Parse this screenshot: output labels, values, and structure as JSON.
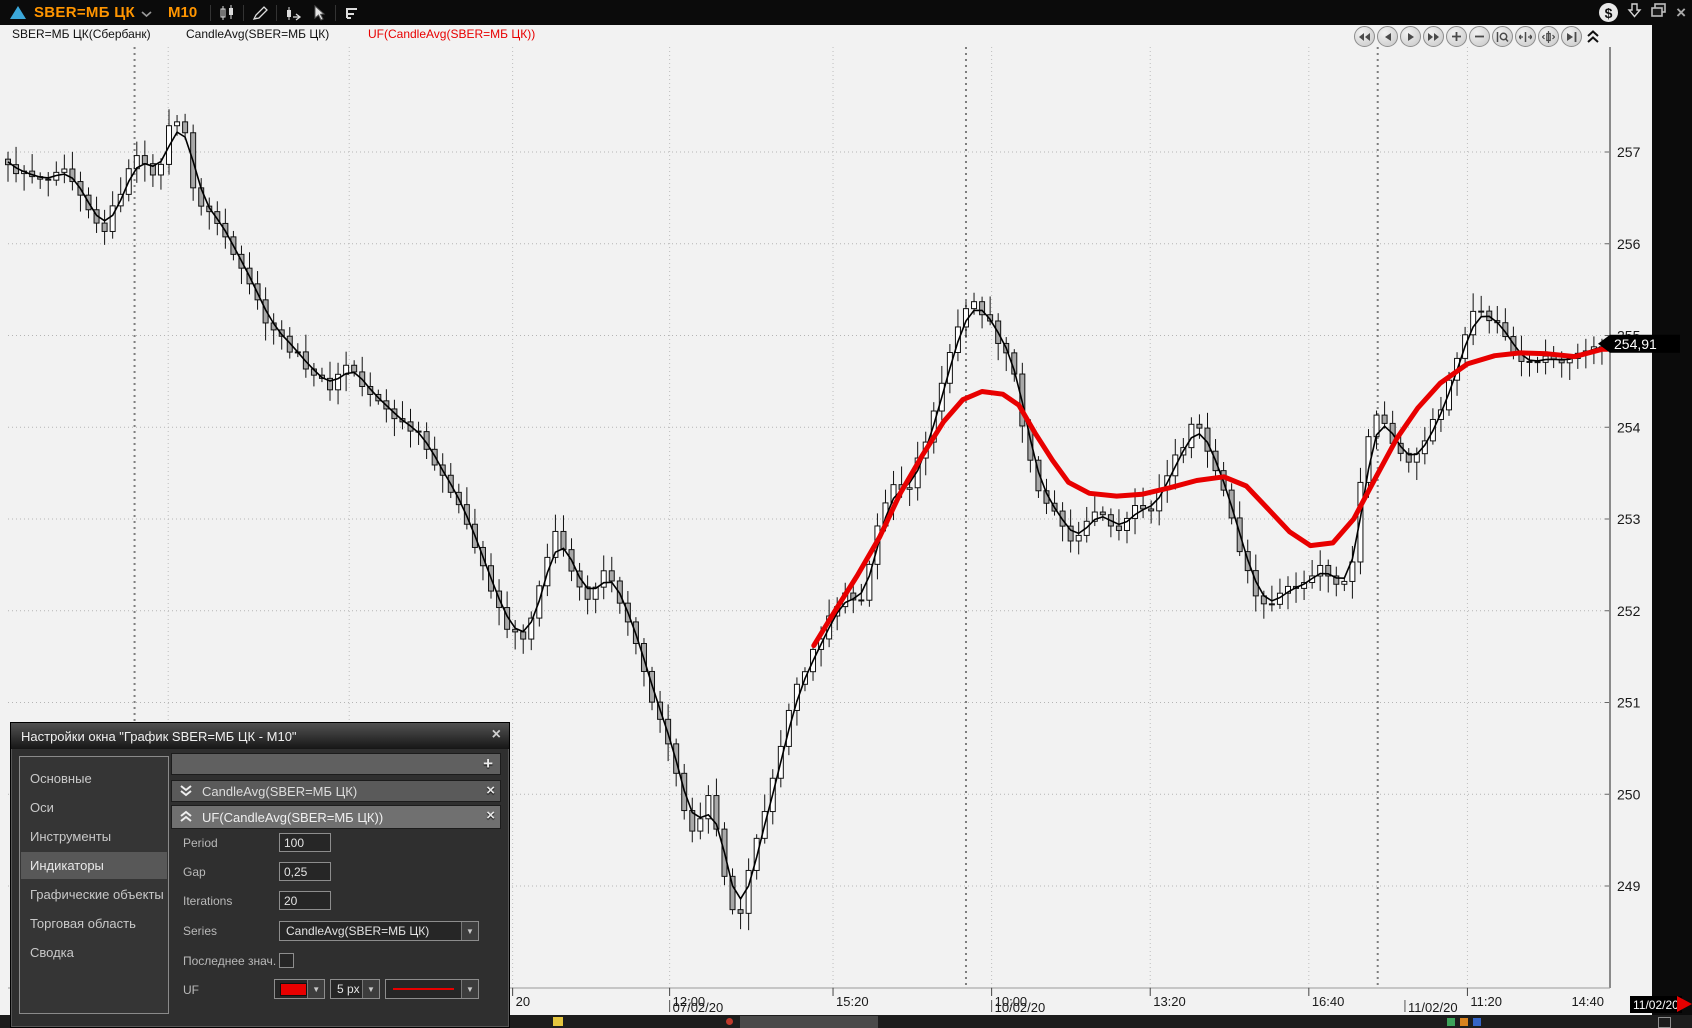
{
  "titlebar": {
    "symbol": "SBER=МБ ЦК",
    "timeframe": "M10",
    "accent_color": "#ff9500",
    "window_buttons": [
      "dollar",
      "download",
      "restore",
      "close"
    ],
    "close_glyph": "×",
    "dollar_glyph": "$",
    "tool_icons": [
      "candles-icon",
      "pencil-icon",
      "candle-edit-icon",
      "cursor-icon",
      "levels-icon"
    ]
  },
  "legend": {
    "items": [
      {
        "label": "SBER=МБ ЦК(Сбербанк)",
        "color": "#111111"
      },
      {
        "label": "CandleAvg(SBER=МБ ЦК)",
        "color": "#111111"
      },
      {
        "label": "UF(CandleAvg(SBER=МБ ЦК))",
        "color": "#e80000"
      }
    ]
  },
  "nav_buttons": [
    "scroll-start",
    "scroll-left",
    "scroll-right",
    "scroll-end",
    "zoom-in",
    "zoom-out",
    "zoom-select",
    "expand-horizontal",
    "fit-candles",
    "go-to-end",
    "collapse-toolbar"
  ],
  "chart_data": {
    "type": "candlestick",
    "instrument": "SBER=МБ ЦК",
    "timeframe": "M10",
    "series": [
      "SBER=МБ ЦК(Сбербанк)",
      "CandleAvg(SBER=МБ ЦК)",
      "UF(CandleAvg(SBER=МБ ЦК))"
    ],
    "price_ticks": [
      257,
      256,
      255,
      254,
      253,
      252,
      251,
      250,
      249
    ],
    "price_range": [
      248.4,
      257.7
    ],
    "bars": 200,
    "last_price": "254,91",
    "up_fill": "#ffffff",
    "down_fill": "#a8a8a8",
    "uf_color": "#e80000",
    "time_ticks": [
      {
        "f": 0.315,
        "label": "20"
      },
      {
        "f": 0.413,
        "label": "12:00"
      },
      {
        "f": 0.515,
        "label": "15:20"
      },
      {
        "f": 0.614,
        "label": "10:00"
      },
      {
        "f": 0.713,
        "label": "13:20"
      },
      {
        "f": 0.812,
        "label": "16:40"
      },
      {
        "f": 0.911,
        "label": "11:20"
      },
      {
        "f": 0.9963,
        "label": "14:40"
      }
    ],
    "date_labels": [
      {
        "f": 0.413,
        "label": "07/02/20"
      },
      {
        "f": 0.614,
        "label": "10/02/20"
      },
      {
        "f": 0.872,
        "label": "11/02/20"
      }
    ],
    "grid_light": [
      0.1,
      0.213,
      0.315,
      0.413,
      0.515,
      0.614,
      0.713,
      0.812,
      0.911
    ],
    "grid_session": [
      0.079,
      0.598,
      0.855
    ],
    "close_path": [
      [
        0.002,
        256.83
      ],
      [
        0.022,
        256.66
      ],
      [
        0.036,
        256.78
      ],
      [
        0.046,
        256.46
      ],
      [
        0.059,
        256.11
      ],
      [
        0.069,
        256.52
      ],
      [
        0.082,
        257.06
      ],
      [
        0.092,
        256.64
      ],
      [
        0.101,
        257.3
      ],
      [
        0.109,
        257.42
      ],
      [
        0.116,
        256.52
      ],
      [
        0.126,
        256.34
      ],
      [
        0.137,
        256.04
      ],
      [
        0.147,
        255.74
      ],
      [
        0.16,
        255.2
      ],
      [
        0.174,
        254.9
      ],
      [
        0.187,
        254.66
      ],
      [
        0.2,
        254.42
      ],
      [
        0.212,
        254.72
      ],
      [
        0.224,
        254.36
      ],
      [
        0.234,
        254.24
      ],
      [
        0.245,
        254.06
      ],
      [
        0.258,
        253.94
      ],
      [
        0.27,
        253.46
      ],
      [
        0.281,
        253.22
      ],
      [
        0.293,
        252.62
      ],
      [
        0.303,
        252.14
      ],
      [
        0.313,
        251.78
      ],
      [
        0.323,
        251.66
      ],
      [
        0.333,
        252.32
      ],
      [
        0.342,
        252.92
      ],
      [
        0.352,
        252.38
      ],
      [
        0.362,
        252.08
      ],
      [
        0.371,
        252.5
      ],
      [
        0.38,
        252.2
      ],
      [
        0.391,
        251.66
      ],
      [
        0.4,
        251.12
      ],
      [
        0.411,
        250.58
      ],
      [
        0.421,
        249.92
      ],
      [
        0.429,
        249.56
      ],
      [
        0.438,
        249.98
      ],
      [
        0.446,
        249.26
      ],
      [
        0.455,
        248.48
      ],
      [
        0.463,
        249.26
      ],
      [
        0.473,
        249.8
      ],
      [
        0.481,
        250.46
      ],
      [
        0.492,
        251.18
      ],
      [
        0.501,
        251.48
      ],
      [
        0.512,
        251.9
      ],
      [
        0.521,
        252.2
      ],
      [
        0.532,
        252.08
      ],
      [
        0.542,
        252.86
      ],
      [
        0.552,
        253.4
      ],
      [
        0.562,
        253.34
      ],
      [
        0.573,
        253.88
      ],
      [
        0.582,
        254.42
      ],
      [
        0.592,
        255.08
      ],
      [
        0.6,
        255.38
      ],
      [
        0.609,
        255.26
      ],
      [
        0.618,
        254.96
      ],
      [
        0.627,
        254.72
      ],
      [
        0.635,
        253.82
      ],
      [
        0.643,
        253.28
      ],
      [
        0.652,
        253.1
      ],
      [
        0.662,
        252.74
      ],
      [
        0.672,
        252.92
      ],
      [
        0.682,
        253.1
      ],
      [
        0.692,
        252.86
      ],
      [
        0.702,
        253.16
      ],
      [
        0.712,
        253.04
      ],
      [
        0.722,
        253.46
      ],
      [
        0.732,
        253.76
      ],
      [
        0.741,
        254.12
      ],
      [
        0.75,
        253.7
      ],
      [
        0.76,
        253.28
      ],
      [
        0.769,
        252.68
      ],
      [
        0.778,
        252.2
      ],
      [
        0.788,
        252.02
      ],
      [
        0.798,
        252.32
      ],
      [
        0.808,
        252.26
      ],
      [
        0.818,
        252.5
      ],
      [
        0.828,
        252.32
      ],
      [
        0.838,
        252.38
      ],
      [
        0.847,
        253.82
      ],
      [
        0.856,
        254.18
      ],
      [
        0.865,
        253.82
      ],
      [
        0.875,
        253.58
      ],
      [
        0.884,
        253.88
      ],
      [
        0.894,
        254.18
      ],
      [
        0.904,
        254.72
      ],
      [
        0.914,
        255.32
      ],
      [
        0.923,
        255.2
      ],
      [
        0.932,
        255.08
      ],
      [
        0.941,
        254.78
      ],
      [
        0.951,
        254.66
      ],
      [
        0.961,
        254.78
      ],
      [
        0.971,
        254.66
      ],
      [
        0.981,
        254.78
      ],
      [
        0.991,
        254.9
      ],
      [
        1.0,
        254.91
      ]
    ],
    "uf_line": [
      [
        0.503,
        251.62
      ],
      [
        0.517,
        252.02
      ],
      [
        0.53,
        252.38
      ],
      [
        0.544,
        252.8
      ],
      [
        0.557,
        253.28
      ],
      [
        0.571,
        253.7
      ],
      [
        0.584,
        254.06
      ],
      [
        0.596,
        254.3
      ],
      [
        0.608,
        254.39
      ],
      [
        0.621,
        254.36
      ],
      [
        0.631,
        254.24
      ],
      [
        0.641,
        253.94
      ],
      [
        0.652,
        253.64
      ],
      [
        0.662,
        253.4
      ],
      [
        0.675,
        253.28
      ],
      [
        0.692,
        253.25
      ],
      [
        0.708,
        253.27
      ],
      [
        0.725,
        253.34
      ],
      [
        0.742,
        253.42
      ],
      [
        0.759,
        253.46
      ],
      [
        0.773,
        253.36
      ],
      [
        0.786,
        253.12
      ],
      [
        0.8,
        252.86
      ],
      [
        0.813,
        252.71
      ],
      [
        0.827,
        252.74
      ],
      [
        0.84,
        253.0
      ],
      [
        0.854,
        253.46
      ],
      [
        0.867,
        253.88
      ],
      [
        0.88,
        254.21
      ],
      [
        0.894,
        254.48
      ],
      [
        0.911,
        254.69
      ],
      [
        0.928,
        254.78
      ],
      [
        0.944,
        254.81
      ],
      [
        0.961,
        254.8
      ],
      [
        0.978,
        254.77
      ],
      [
        0.995,
        254.85
      ]
    ],
    "last_date_badge": "11/02/20"
  },
  "dialog": {
    "title": "Настройки окна \"График SBER=МБ ЦК - M10\"",
    "close_glyph": "×",
    "sidebar": [
      {
        "label": "Основные"
      },
      {
        "label": "Оси"
      },
      {
        "label": "Инструменты"
      },
      {
        "label": "Индикаторы"
      },
      {
        "label": "Графические объекты"
      },
      {
        "label": "Торговая область"
      },
      {
        "label": "Сводка"
      }
    ],
    "selected_sidebar": "Индикаторы",
    "add_glyph": "+",
    "remove_glyph": "×",
    "indicators": [
      {
        "name": "CandleAvg(SBER=МБ ЦК)"
      },
      {
        "name": "UF(CandleAvg(SBER=МБ ЦК))"
      }
    ],
    "fields": {
      "period_label": "Period",
      "period_value": "100",
      "gap_label": "Gap",
      "gap_value": "0,25",
      "iterations_label": "Iterations",
      "iterations_value": "20",
      "series_label": "Series",
      "series_value": "CandleAvg(SBER=МБ ЦК)",
      "last_value_label": "Последнее знач.",
      "last_value_checked": false,
      "uf_label": "UF",
      "uf_color": "#e80000",
      "uf_width": "5 px"
    }
  }
}
